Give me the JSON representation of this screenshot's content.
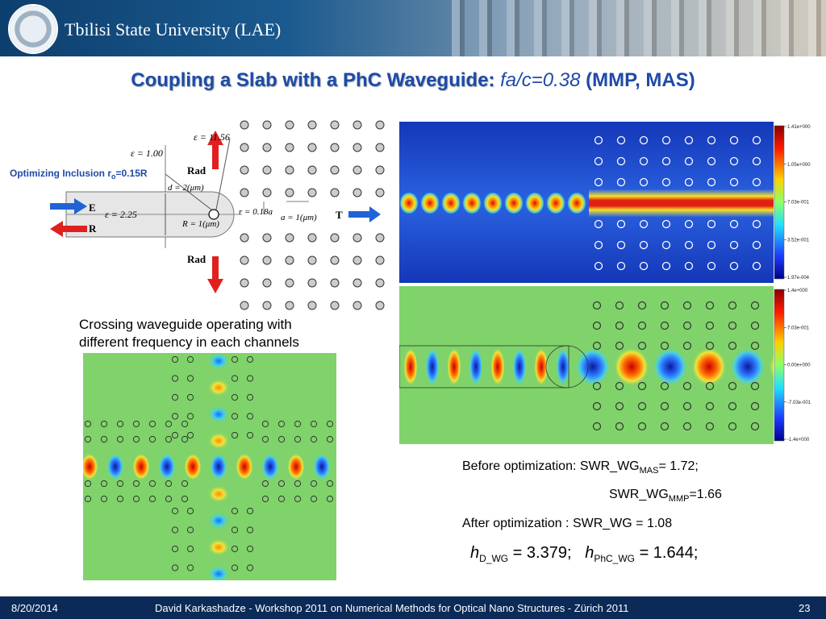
{
  "header": {
    "university": "Tbilisi State University (LAE)"
  },
  "title": {
    "main": "Coupling a Slab with a PhC Waveguide:",
    "param": "fa/c=0.38",
    "method": "(MMP, MAS)"
  },
  "diagram": {
    "inclusion_label": "Optimizing Inclusion r",
    "inclusion_sub": "o",
    "inclusion_value": "=0.15R",
    "eps_slab": "ε = 1.00",
    "eps_rod": "ε = 11.56",
    "eps_wg": "ε = 2.25",
    "rad_top": "Rad",
    "rad_bottom": "Rad",
    "d_label": "d = 2(μm)",
    "R_label": "R = 1(μm)",
    "r_label": "r = 0.18a",
    "a_label": "a = 1(μm)",
    "E": "E",
    "R": "R",
    "T": "T"
  },
  "colorbar_top": {
    "ticks": [
      "1.41e+000",
      "1.05e+000",
      "7.03e-001",
      "3.52e-001",
      "1.97e-004"
    ]
  },
  "colorbar_bottom": {
    "ticks": [
      "1.4e+000",
      "7.03e-001",
      "0.00e+000",
      "-7.03e-001",
      "-1.4e+000"
    ]
  },
  "crossing": {
    "caption_line1": "Crossing waveguide operating with",
    "caption_line2": "different frequency in each channels"
  },
  "results": {
    "before_label": "Before optimization: SWR_WG",
    "before_sub": "MAS",
    "before_value": "= 1.72;",
    "mmp_label": "SWR_WG",
    "mmp_sub": "MMP",
    "mmp_value": "=1.66",
    "after_label": "After optimization   : SWR_WG = 1.08",
    "h1_var": "h",
    "h1_sub": "D_WG",
    "h1_eq": " =  3.379;",
    "h2_var": "h",
    "h2_sub": "PhC_WG",
    "h2_eq": " =  1.644;"
  },
  "footer": {
    "date": "8/20/2014",
    "center": "David Karkashadze - Workshop 2011 on Numerical Methods for Optical Nano Structures - Zürich 2011",
    "page": "23"
  },
  "colors": {
    "header_blue": "#0d3f6e",
    "title_blue": "#1f4aa8",
    "footer_navy": "#0b2a57",
    "arrow_red": "#e02020",
    "arrow_blue": "#1f63d6",
    "field_green": "#7fd36a"
  }
}
